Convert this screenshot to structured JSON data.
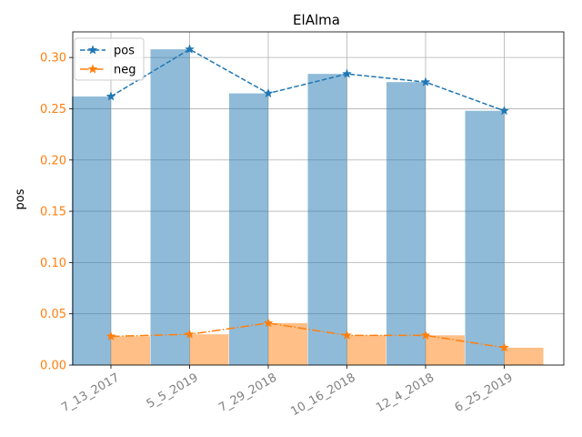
{
  "chart_data": {
    "type": "bar",
    "title": "ElAlma",
    "xlabel": "",
    "ylabel": "pos",
    "ylim": [
      0,
      0.325
    ],
    "yticks": [
      0.0,
      0.05,
      0.1,
      0.15,
      0.2,
      0.25,
      0.3
    ],
    "ytick_labels": [
      "0.00",
      "0.05",
      "0.10",
      "0.15",
      "0.20",
      "0.25",
      "0.30"
    ],
    "categories": [
      "7_13_2017",
      "5_5_2019",
      "7_29_2018",
      "10_16_2018",
      "12_4_2018",
      "6_25_2019"
    ],
    "grid": true,
    "legend_position": "top-left",
    "ytick_color": "#ff7f0e",
    "xtick_color": "#808080",
    "series": [
      {
        "name": "pos",
        "values": [
          0.262,
          0.308,
          0.265,
          0.284,
          0.276,
          0.248
        ],
        "color": "#1f77b4",
        "line_style": "dashed",
        "marker": "star"
      },
      {
        "name": "neg",
        "values": [
          0.028,
          0.03,
          0.041,
          0.029,
          0.029,
          0.017
        ],
        "color": "#ff7f0e",
        "line_style": "dashdot",
        "marker": "star"
      }
    ]
  }
}
